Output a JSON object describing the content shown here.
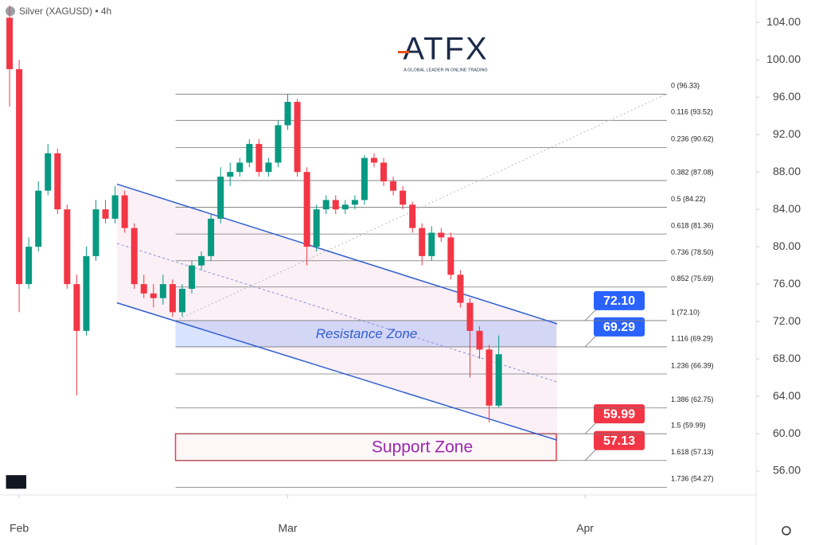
{
  "chart_data": {
    "type": "candlestick",
    "title": "Silver (XAGUSD) • 4h",
    "logo": "ATFX",
    "logo_tagline": "A GLOBAL LEADER IN ONLINE TRADING",
    "up_color": "#089981",
    "down_color": "#f23645",
    "x": [
      -1,
      0,
      1,
      2,
      3,
      4,
      5,
      6,
      7,
      8,
      9,
      10,
      11,
      12,
      13,
      14,
      15,
      16,
      17,
      18,
      19,
      20,
      21,
      22,
      23,
      24,
      25,
      26,
      27,
      28,
      29,
      30,
      31,
      32,
      33,
      34,
      35,
      36,
      37,
      38,
      39,
      40,
      41,
      42,
      43,
      44,
      45,
      46,
      47,
      48,
      49,
      50
    ],
    "open": [
      104.5,
      99,
      76,
      80,
      86,
      90,
      84,
      76,
      71,
      79,
      84,
      83,
      85.5,
      82,
      76,
      75,
      74.5,
      76,
      73,
      75.5,
      78,
      79,
      83,
      87.5,
      88,
      89,
      91,
      88,
      89,
      93,
      95.5,
      88,
      80,
      84,
      85,
      84,
      84.5,
      85,
      89.5,
      89,
      87,
      86,
      84.5,
      82,
      79,
      81.5,
      81,
      77,
      74,
      71,
      69,
      63
    ],
    "high": [
      105.8,
      100,
      81,
      87,
      91,
      90.5,
      84.5,
      77,
      80,
      85,
      85,
      86.5,
      86,
      82.5,
      77,
      76,
      77,
      76.5,
      76,
      78.5,
      79.5,
      83.5,
      88.5,
      89,
      89.5,
      91.5,
      91.5,
      89.5,
      93.5,
      96.33,
      95.8,
      88.5,
      84.5,
      85.5,
      85.5,
      85,
      85.5,
      89.8,
      90,
      89.5,
      87.5,
      86.5,
      84.8,
      82.5,
      82.2,
      82,
      81.5,
      77.5,
      74.5,
      71.5,
      69.5,
      70.5
    ],
    "low": [
      95,
      73,
      75.5,
      79.5,
      85.5,
      83.5,
      75.5,
      64.1,
      70.5,
      78.5,
      82.5,
      82.5,
      81.5,
      75.5,
      74.5,
      73.5,
      73.8,
      72.5,
      72.5,
      75,
      77.5,
      78.5,
      82.5,
      86.5,
      87.5,
      88.5,
      87.5,
      87.5,
      88.5,
      92.5,
      87.5,
      78,
      79.5,
      83.5,
      83.5,
      83.5,
      84,
      84.5,
      88.5,
      86.5,
      85.5,
      84,
      81.5,
      78,
      78.5,
      80.5,
      76.5,
      73.5,
      66,
      68,
      61.2,
      62.8
    ],
    "close": [
      99,
      76,
      80,
      86,
      90,
      84,
      76,
      71,
      79,
      84,
      83,
      85.5,
      82,
      76,
      75,
      74.5,
      76,
      73,
      75.5,
      78,
      79,
      83,
      87.5,
      88,
      89,
      91,
      88,
      89,
      93,
      95.5,
      88,
      80,
      84,
      85,
      84,
      84.5,
      85,
      89.5,
      89,
      87,
      86,
      84.5,
      82,
      79,
      81.5,
      81,
      77,
      74,
      71,
      69,
      63,
      68.5
    ],
    "xlim": [
      -2,
      77
    ],
    "xticks": [
      {
        "value": 0,
        "label": "Feb"
      },
      {
        "value": 28,
        "label": "Mar"
      },
      {
        "value": 59,
        "label": "Apr"
      }
    ],
    "ylim": [
      53.45,
      106.4
    ],
    "yticks": [
      {
        "value": 104,
        "label": "104.00"
      },
      {
        "value": 100,
        "label": "100.00"
      },
      {
        "value": 96,
        "label": "96.00"
      },
      {
        "value": 92,
        "label": "92.00"
      },
      {
        "value": 88,
        "label": "88.00"
      },
      {
        "value": 84,
        "label": "84.00"
      },
      {
        "value": 80,
        "label": "80.00"
      },
      {
        "value": 76,
        "label": "76.00"
      },
      {
        "value": 72,
        "label": "72.00"
      },
      {
        "value": 68,
        "label": "68.00"
      },
      {
        "value": 64,
        "label": "64.00"
      },
      {
        "value": 60,
        "label": "60.00"
      },
      {
        "value": 56,
        "label": "56.00"
      }
    ],
    "fib_x": [
      16.3,
      67.5
    ],
    "fib_levels": [
      {
        "value": 96.33,
        "label": "0 (96.33)"
      },
      {
        "value": 93.52,
        "label": "0.116 (93.52)"
      },
      {
        "value": 90.62,
        "label": "0.236 (90.62)"
      },
      {
        "value": 87.08,
        "label": "0.382 (87.08)"
      },
      {
        "value": 84.22,
        "label": "0.5 (84.22)"
      },
      {
        "value": 81.36,
        "label": "0.618 (81.36)"
      },
      {
        "value": 78.5,
        "label": "0.736 (78.50)"
      },
      {
        "value": 75.69,
        "label": "0.852 (75.69)"
      },
      {
        "value": 72.1,
        "label": "1 (72.10)"
      },
      {
        "value": 69.29,
        "label": "1.116 (69.29)"
      },
      {
        "value": 66.39,
        "label": "1.236 (66.39)"
      },
      {
        "value": 62.75,
        "label": "1.386 (62.75)"
      },
      {
        "value": 59.99,
        "label": "1.5 (59.99)"
      },
      {
        "value": 57.13,
        "label": "1.618 (57.13)"
      },
      {
        "value": 54.27,
        "label": "1.736 (54.27)"
      }
    ],
    "channel": {
      "x": [
        10.2,
        56.1
      ],
      "upper": [
        86.7,
        71.75
      ],
      "lower": [
        74,
        59.3
      ]
    },
    "zones": [
      {
        "name": "Resistance Zone",
        "color": "#2962ff",
        "x": [
          16.3,
          56
        ],
        "top": {
          "value": 72.1,
          "label": "72.10"
        },
        "bottom": {
          "value": 69.29,
          "label": "69.29"
        }
      },
      {
        "name": "Support Zone",
        "color": "#f23645",
        "x": [
          16.3,
          56
        ],
        "top": {
          "value": 59.99,
          "label": "59.99"
        },
        "bottom": {
          "value": 57.13,
          "label": "57.13"
        }
      }
    ]
  }
}
